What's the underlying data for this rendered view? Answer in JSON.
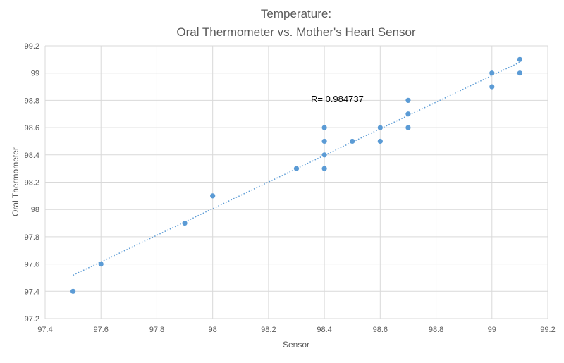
{
  "chart_data": {
    "type": "scatter",
    "title_lines": [
      "Temperature:",
      "Oral Thermometer vs. Mother's Heart Sensor"
    ],
    "xlabel": "Sensor",
    "ylabel": "Oral Thermometer",
    "xlim": [
      97.4,
      99.2
    ],
    "ylim": [
      97.2,
      99.2
    ],
    "xticks": [
      "97.4",
      "97.6",
      "97.8",
      "98",
      "98.2",
      "98.4",
      "98.6",
      "98.8",
      "99",
      "99.2"
    ],
    "yticks": [
      "97.2",
      "97.4",
      "97.6",
      "97.8",
      "98",
      "98.2",
      "98.4",
      "98.6",
      "98.8",
      "99",
      "99.2"
    ],
    "grid": true,
    "trendline": "linear, dotted",
    "annotation": "R= 0.984737",
    "marker_color": "#5b9bd5",
    "points": [
      [
        97.5,
        97.4
      ],
      [
        97.6,
        97.6
      ],
      [
        97.9,
        97.9
      ],
      [
        98.0,
        98.1
      ],
      [
        98.3,
        98.3
      ],
      [
        98.4,
        98.6
      ],
      [
        98.4,
        98.5
      ],
      [
        98.4,
        98.4
      ],
      [
        98.4,
        98.3
      ],
      [
        98.5,
        98.5
      ],
      [
        98.6,
        98.6
      ],
      [
        98.6,
        98.5
      ],
      [
        98.7,
        98.8
      ],
      [
        98.7,
        98.7
      ],
      [
        98.7,
        98.6
      ],
      [
        99.0,
        99.0
      ],
      [
        99.0,
        98.9
      ],
      [
        99.1,
        99.1
      ],
      [
        99.1,
        99.0
      ]
    ]
  }
}
